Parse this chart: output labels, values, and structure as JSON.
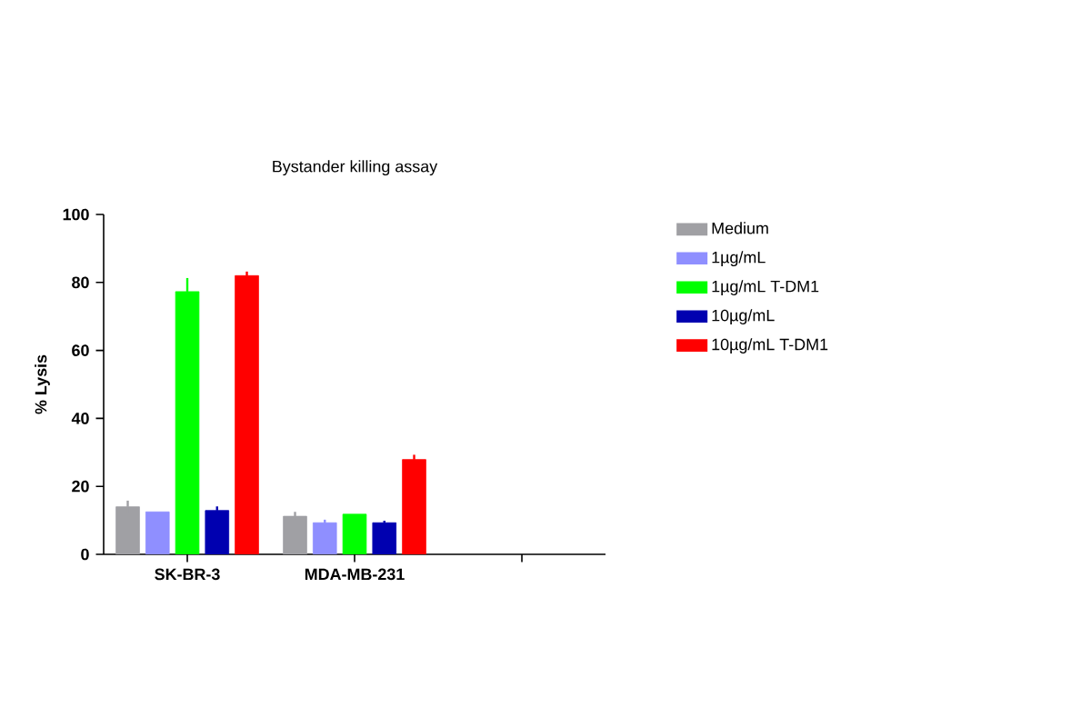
{
  "chart_data": {
    "type": "bar",
    "title": "Bystander killing assay",
    "ylabel": "% Lysis",
    "categories": [
      "SK-BR-3",
      "MDA-MB-231",
      null
    ],
    "series": [
      {
        "name": "Medium",
        "color": "#a0a0a4",
        "values": [
          14,
          11.2,
          null
        ],
        "errors": [
          1.8,
          1.3,
          null
        ]
      },
      {
        "name": "1µg/mL",
        "color": "#8f8fff",
        "values": [
          12.5,
          9.3,
          null
        ],
        "errors": [
          null,
          0.9,
          null
        ]
      },
      {
        "name": "1µg/mL T-DM1",
        "color": "#00ff00",
        "values": [
          77.3,
          11.8,
          null
        ],
        "errors": [
          4,
          null,
          null
        ]
      },
      {
        "name": "10µg/mL",
        "color": "#0000b0",
        "values": [
          12.9,
          9.3,
          null
        ],
        "errors": [
          1.2,
          0.6,
          null
        ]
      },
      {
        "name": "10µg/mL T-DM1",
        "color": "#ff0000",
        "values": [
          82,
          27.9,
          null
        ],
        "errors": [
          1.2,
          1.4,
          null
        ]
      }
    ],
    "ylim": [
      0,
      100
    ],
    "yticks": [
      0,
      20,
      40,
      60,
      80,
      100
    ],
    "legend": "right",
    "grid": false
  }
}
